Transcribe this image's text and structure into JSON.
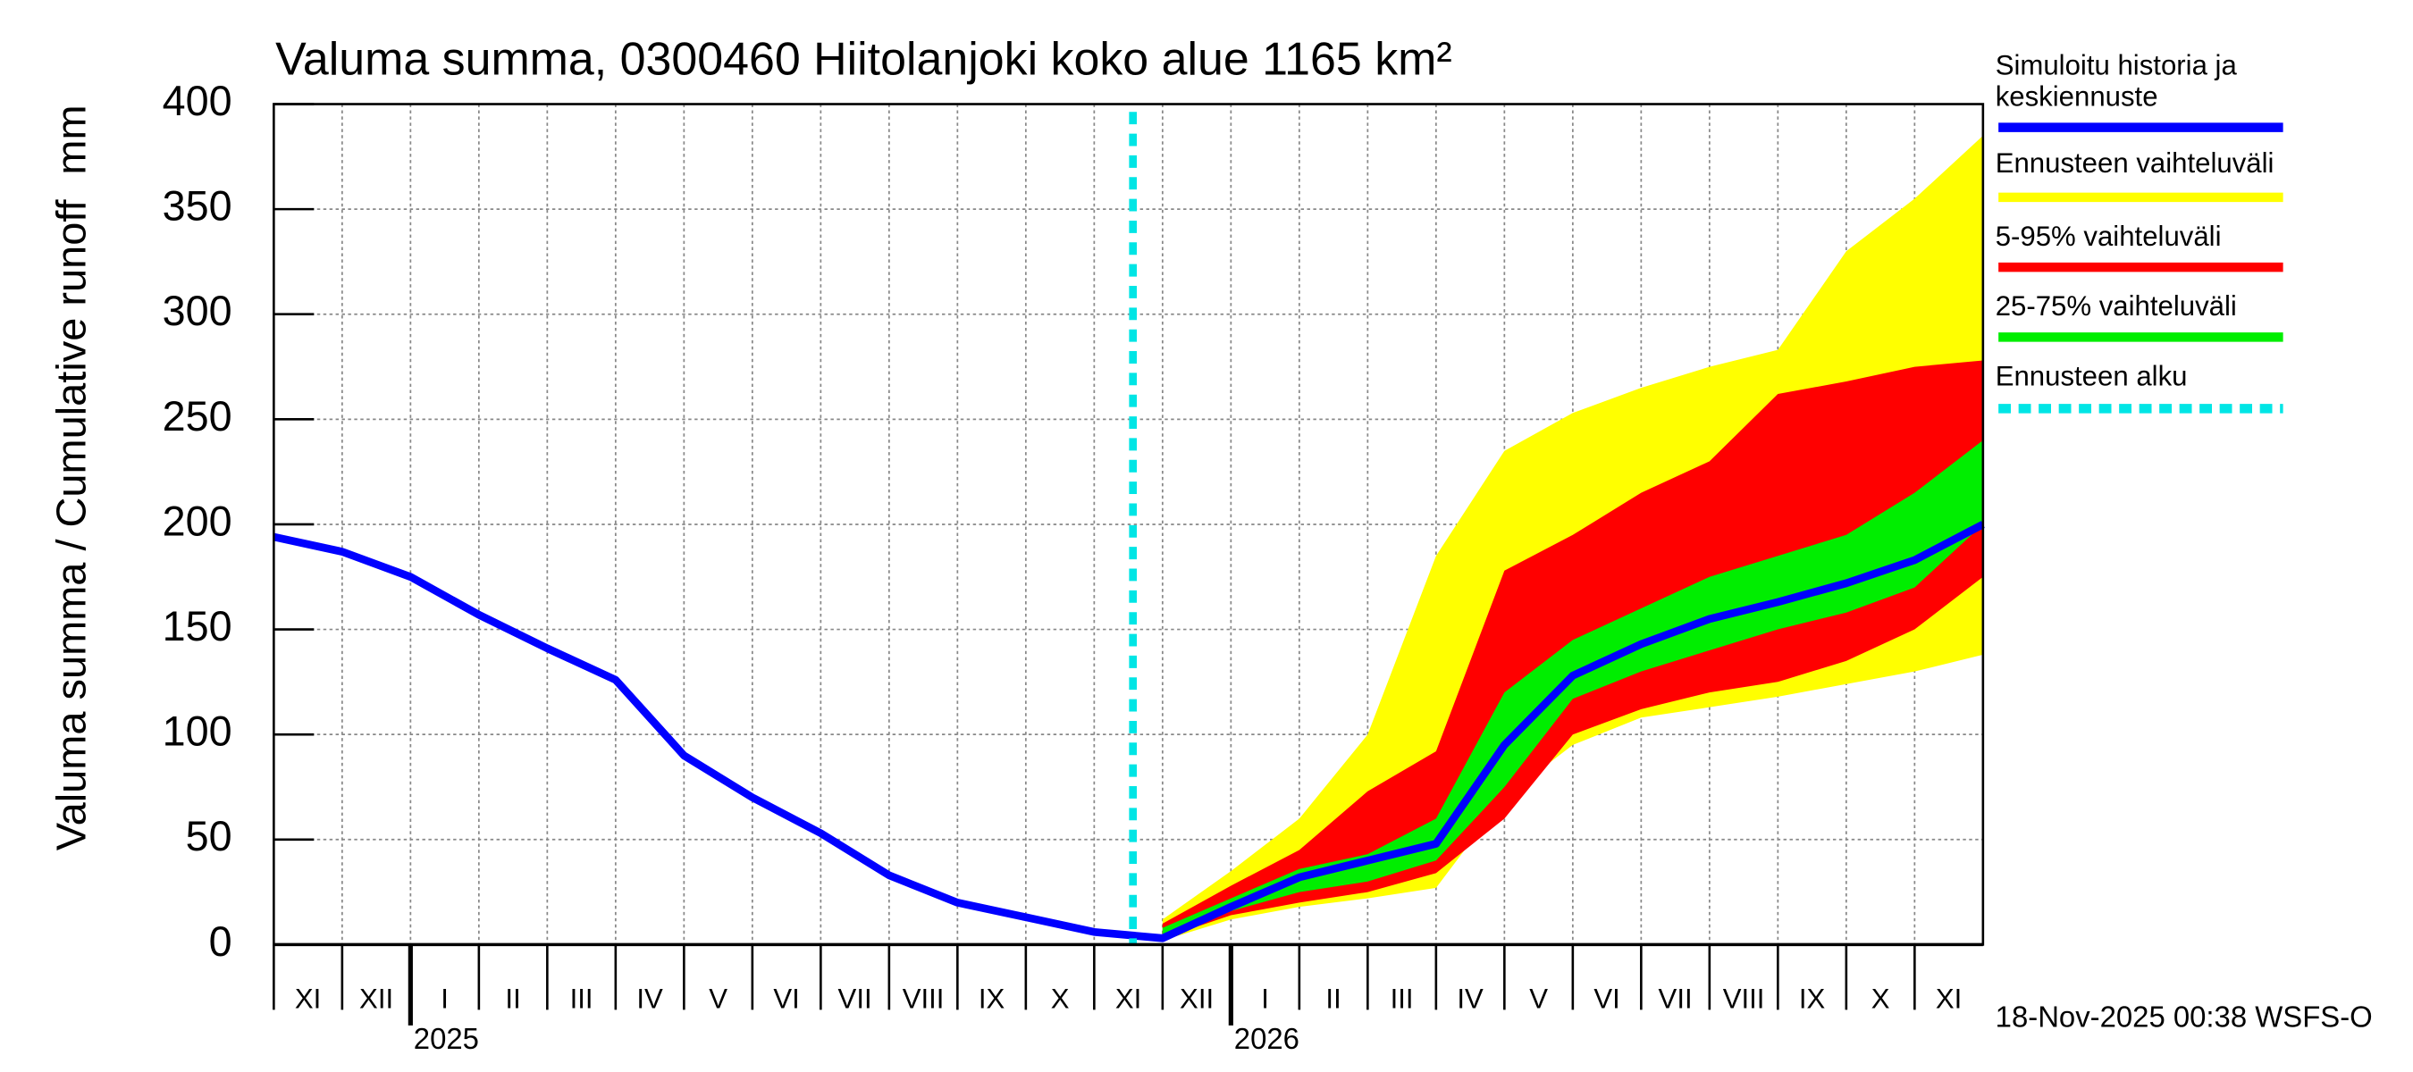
{
  "chart_data": {
    "type": "band-line",
    "title": "Valuma summa, 0300460 Hiitolanjoki koko alue 1165 km²",
    "y_label": "Valuma summa / Cumulative runoff",
    "y_unit": "mm",
    "footer": "18-Nov-2025 00:38 WSFS-O",
    "categories": [
      "XI",
      "XII",
      "I",
      "II",
      "III",
      "IV",
      "V",
      "VI",
      "VII",
      "VIII",
      "IX",
      "X",
      "XI",
      "XII",
      "I",
      "II",
      "III",
      "IV",
      "V",
      "VI",
      "VII",
      "VIII",
      "IX",
      "X",
      "XI"
    ],
    "year_labels": [
      "2025",
      "2026"
    ],
    "x": [
      "2024-11",
      "2024-12",
      "2025-01",
      "2025-02",
      "2025-03",
      "2025-04",
      "2025-05",
      "2025-06",
      "2025-07",
      "2025-08",
      "2025-09",
      "2025-10",
      "2025-11",
      "2025-12",
      "2026-01",
      "2026-02",
      "2026-03",
      "2026-04",
      "2026-05",
      "2026-06",
      "2026-07",
      "2026-08",
      "2026-09",
      "2026-10",
      "2026-11",
      "2026-12"
    ],
    "xlim": [
      "2024-11",
      "2026-12"
    ],
    "ylim": [
      0,
      400
    ],
    "yticks": [
      0,
      50,
      100,
      150,
      200,
      250,
      300,
      350,
      400
    ],
    "grid": true,
    "series": [
      {
        "name": "Simuloitu historia ja keskiennuste",
        "color": "#0000ff",
        "kind": "line",
        "values": [
          194,
          187,
          175,
          157,
          141,
          126,
          90,
          70,
          53,
          33,
          20,
          13,
          6,
          3,
          18,
          32,
          40,
          48,
          95,
          128,
          143,
          155,
          163,
          172,
          183,
          200
        ]
      },
      {
        "name": "Ennusteen vaihteluväli",
        "color": "#ffff00",
        "kind": "band",
        "low": [
          null,
          null,
          null,
          null,
          null,
          null,
          null,
          null,
          null,
          null,
          null,
          null,
          null,
          2,
          12,
          18,
          22,
          27,
          70,
          95,
          108,
          113,
          118,
          124,
          130,
          138
        ],
        "high": [
          null,
          null,
          null,
          null,
          null,
          null,
          null,
          null,
          null,
          null,
          null,
          null,
          null,
          12,
          35,
          60,
          100,
          185,
          235,
          253,
          265,
          275,
          283,
          330,
          355,
          385
        ]
      },
      {
        "name": "5-95% vaihteluväli",
        "color": "#ff0000",
        "kind": "band",
        "low": [
          null,
          null,
          null,
          null,
          null,
          null,
          null,
          null,
          null,
          null,
          null,
          null,
          null,
          3,
          14,
          20,
          25,
          34,
          60,
          100,
          112,
          120,
          125,
          135,
          150,
          175
        ],
        "high": [
          null,
          null,
          null,
          null,
          null,
          null,
          null,
          null,
          null,
          null,
          null,
          null,
          null,
          10,
          28,
          45,
          73,
          92,
          178,
          195,
          215,
          230,
          262,
          268,
          275,
          278
        ]
      },
      {
        "name": "25-75% vaihteluväli",
        "color": "#00ee00",
        "kind": "band",
        "low": [
          null,
          null,
          null,
          null,
          null,
          null,
          null,
          null,
          null,
          null,
          null,
          null,
          null,
          4,
          16,
          25,
          30,
          40,
          75,
          117,
          130,
          140,
          150,
          158,
          170,
          200
        ],
        "high": [
          null,
          null,
          null,
          null,
          null,
          null,
          null,
          null,
          null,
          null,
          null,
          null,
          null,
          8,
          22,
          36,
          43,
          60,
          120,
          145,
          160,
          175,
          185,
          195,
          215,
          240
        ]
      }
    ],
    "forecast_start": {
      "name": "Ennusteen alku",
      "color": "#00e5e5",
      "x": "2025-11-18"
    }
  }
}
